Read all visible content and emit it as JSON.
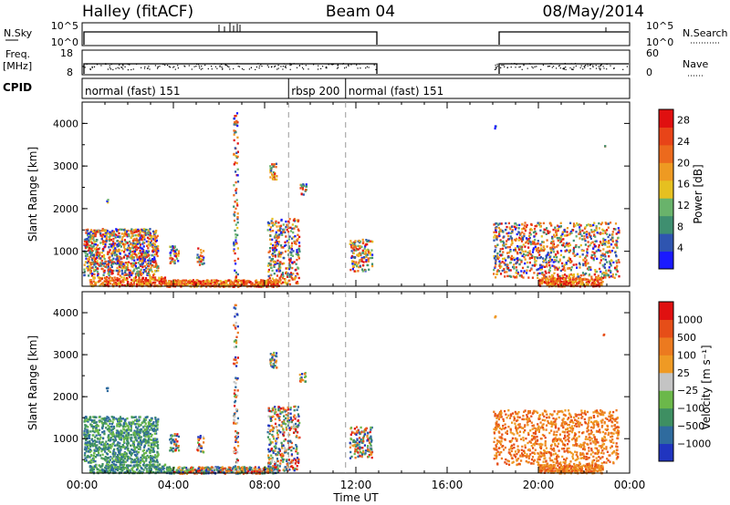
{
  "header": {
    "station": "Halley (fitACF)",
    "beam": "Beam 04",
    "date": "08/May/2014"
  },
  "aux_panels": {
    "nsky_label": "N.Sky",
    "nsky_ticks": [
      "10^5",
      "10^0"
    ],
    "nsearch_label": "N.Search",
    "nsearch_ticks": [
      "10^5",
      "10^0"
    ],
    "freq_label": "Freq.",
    "freq_unit": "[MHz]",
    "freq_ticks": [
      "18",
      "8"
    ],
    "nave_label": "Nave",
    "nave_ticks": [
      "60",
      "0"
    ],
    "cpid_label": "CPID"
  },
  "cpid_segments": [
    {
      "label": "normal (fast) 151",
      "start_hour": 0.0
    },
    {
      "label": "rbsp 200",
      "start_hour": 9.05
    },
    {
      "label": "normal (fast) 151",
      "start_hour": 11.55
    }
  ],
  "chart_data": [
    {
      "type": "heatmap",
      "name": "power",
      "ylabel": "Slant Range [km]",
      "yticks": [
        "1000",
        "2000",
        "3000",
        "4000"
      ],
      "ylim": [
        180,
        4500
      ],
      "xlim_hours": [
        0,
        24
      ],
      "colorbar_label": "Power [dB]",
      "colorbar_ticks": [
        "4",
        "8",
        "12",
        "16",
        "20",
        "24",
        "28"
      ],
      "colorbar_colors": [
        "#1a1aff",
        "#2f55b0",
        "#3f8f70",
        "#69b36b",
        "#e6c020",
        "#ee9a22",
        "#ec6a1d",
        "#e84418",
        "#e01010"
      ],
      "colorbar_range": [
        0,
        30
      ],
      "data_gaps_hours": [
        [
          13.0,
          18.0
        ]
      ]
    },
    {
      "type": "heatmap",
      "name": "velocity",
      "ylabel": "Slant Range [km]",
      "yticks": [
        "1000",
        "2000",
        "3000",
        "4000"
      ],
      "ylim": [
        180,
        4500
      ],
      "xlim_hours": [
        0,
        24
      ],
      "colorbar_label": "Velocity [m s⁻¹]",
      "colorbar_ticks": [
        "1000",
        "500",
        "100",
        "25",
        "−25",
        "−100",
        "−500",
        "−1000"
      ],
      "colorbar_colors": [
        "#2035c0",
        "#2f6b9e",
        "#3e8f62",
        "#6bb84a",
        "#c4c4c4",
        "#ef9a24",
        "#ec7a1f",
        "#e64e18",
        "#e01010"
      ],
      "data_gaps_hours": [
        [
          13.0,
          18.0
        ]
      ]
    }
  ],
  "xaxis": {
    "ticks": [
      "00:00",
      "04:00",
      "08:00",
      "12:00",
      "16:00",
      "20:00",
      "00:00"
    ],
    "label": "Time UT"
  }
}
